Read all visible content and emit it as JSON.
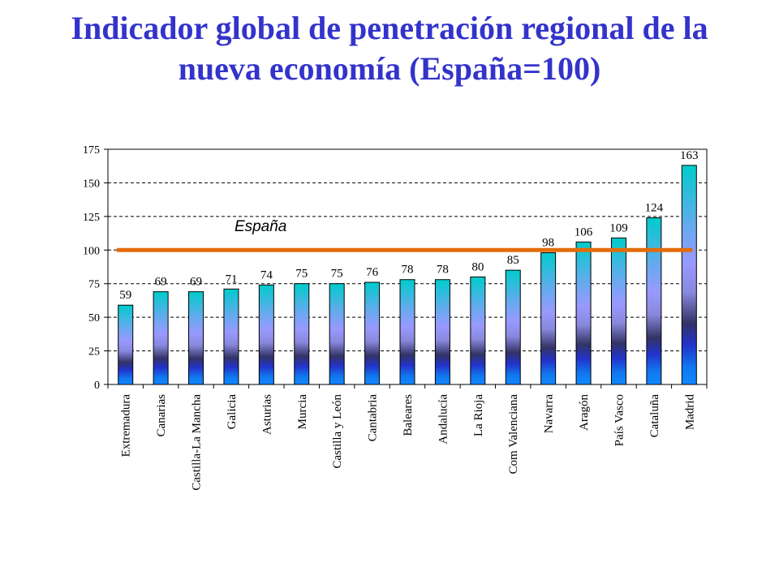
{
  "chart_data": {
    "type": "bar",
    "title_line1": "Indicador global de penetración regional de la",
    "title_line2": "nueva economía (España=100)",
    "categories": [
      "Extremadura",
      "Canarias",
      "Castilla-La Mancha",
      "Galicia",
      "Asturias",
      "Murcia",
      "Castilla y León",
      "Cantabria",
      "Baleares",
      "Andalucía",
      "La Rioja",
      "Com Valenciana",
      "Navarra",
      "Aragón",
      "País Vasco",
      "Cataluña",
      "Madrid"
    ],
    "values": [
      59,
      69,
      69,
      71,
      74,
      75,
      75,
      76,
      78,
      78,
      80,
      85,
      98,
      106,
      109,
      124,
      163
    ],
    "ylim": [
      0,
      175
    ],
    "yticks": [
      0,
      25,
      50,
      75,
      100,
      125,
      150,
      175
    ],
    "grid": true,
    "reference_line": {
      "value": 100,
      "label": "España"
    },
    "xlabel": "",
    "ylabel": ""
  },
  "colors": {
    "title": "#3333cc",
    "reference_line": "#e36c0a",
    "bar_outline": "#000000",
    "bar_gradient": [
      "#00cccc",
      "#66aaee",
      "#9999ff",
      "#8888dd",
      "#333366",
      "#2233cc",
      "#1177ee",
      "#1188ff"
    ]
  }
}
